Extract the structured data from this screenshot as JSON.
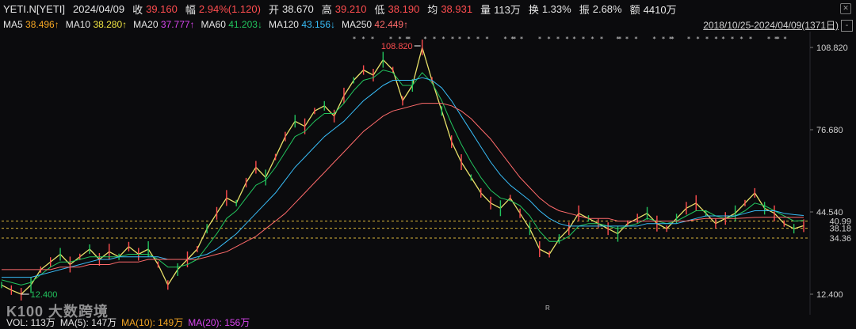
{
  "header": {
    "symbol": "YETI.N[YETI]",
    "date": "2024/04/09",
    "close_label": "收",
    "close": "39.160",
    "change_label": "幅",
    "change": "2.94%(1.120)",
    "open_label": "开",
    "open": "38.670",
    "high_label": "高",
    "high": "39.210",
    "low_label": "低",
    "low": "38.190",
    "avg_label": "均",
    "avg": "38.931",
    "volume_label": "量",
    "volume": "113万",
    "turnover_label": "换",
    "turnover": "1.33%",
    "amplitude_label": "振",
    "amplitude": "2.68%",
    "amount_label": "额",
    "amount": "4410万"
  },
  "ma": [
    {
      "label": "MA5",
      "value": "38.496↑",
      "color": "#f5a623"
    },
    {
      "label": "MA10",
      "value": "38.280↑",
      "color": "#f0e442"
    },
    {
      "label": "MA20",
      "value": "37.777↑",
      "color": "#d946ef"
    },
    {
      "label": "MA60",
      "value": "41.203↓",
      "color": "#22c55e"
    },
    {
      "label": "MA120",
      "value": "43.156↓",
      "color": "#38bdf8"
    },
    {
      "label": "MA250",
      "value": "42.449↑",
      "color": "#ff6b6b"
    }
  ],
  "range": "2018/10/25-2024/04/09(1371日)",
  "range_button": "-",
  "corner_button": "✕",
  "volume_bar": {
    "vol": "VOL: 113万",
    "ma5": "MA(5): 147万",
    "ma10": "MA(10): 149万",
    "ma20": "MA(20): 156万"
  },
  "watermark": "K100 大数跨境",
  "chart_data": {
    "type": "line",
    "y_axis_ticks": [
      "108.820",
      "76.680",
      "44.540",
      "12.400"
    ],
    "ylim": [
      12.4,
      108.82
    ],
    "ref_lines": [
      {
        "label": "40.99",
        "value": 40.99
      },
      {
        "label": "38.18",
        "value": 38.18
      },
      {
        "label": "34.36",
        "value": 34.36
      }
    ],
    "annotations": [
      {
        "label": "108.820",
        "value": 108.82,
        "kind": "high"
      },
      {
        "label": "12.400",
        "value": 12.4,
        "kind": "low"
      },
      {
        "label": "R",
        "kind": "marker"
      }
    ],
    "series": [
      {
        "name": "price",
        "color": "#e9e26a",
        "values": [
          16,
          14,
          12.4,
          16,
          22,
          25,
          28,
          24,
          27,
          30,
          26,
          29,
          27,
          31,
          28,
          30,
          24,
          16,
          22,
          26,
          30,
          38,
          44,
          50,
          48,
          56,
          62,
          58,
          66,
          74,
          80,
          78,
          84,
          86,
          82,
          90,
          96,
          100,
          98,
          104,
          100,
          88,
          94,
          108.82,
          96,
          84,
          72,
          64,
          58,
          52,
          48,
          46,
          50,
          44,
          38,
          30,
          28,
          34,
          38,
          44,
          42,
          40,
          38,
          36,
          40,
          42,
          44,
          40,
          38,
          42,
          46,
          48,
          44,
          40,
          42,
          44,
          48,
          52,
          46,
          44,
          40,
          38,
          39.16
        ]
      },
      {
        "name": "MA60",
        "color": "#22c55e",
        "values": [
          18,
          17,
          16,
          17,
          20,
          23,
          25,
          25,
          26,
          27,
          27,
          27,
          27,
          28,
          28,
          28,
          26,
          23,
          23,
          24,
          26,
          31,
          36,
          42,
          45,
          50,
          55,
          57,
          62,
          68,
          74,
          76,
          80,
          83,
          83,
          87,
          92,
          96,
          97,
          100,
          99,
          94,
          94,
          99,
          95,
          88,
          79,
          71,
          64,
          58,
          53,
          50,
          49,
          47,
          43,
          37,
          33,
          33,
          35,
          39,
          40,
          40,
          39,
          38,
          39,
          40,
          42,
          41,
          40,
          41,
          43,
          45,
          45,
          43,
          42,
          43,
          45,
          48,
          47,
          45,
          43,
          41,
          41.2
        ]
      },
      {
        "name": "MA120",
        "color": "#38bdf8",
        "values": [
          19,
          19,
          19,
          19,
          20,
          21,
          22,
          23,
          24,
          25,
          26,
          26,
          27,
          27,
          27,
          27,
          27,
          26,
          26,
          26,
          27,
          28,
          30,
          33,
          36,
          40,
          44,
          48,
          52,
          57,
          62,
          66,
          70,
          74,
          77,
          80,
          84,
          88,
          91,
          94,
          96,
          96,
          96,
          97,
          96,
          93,
          88,
          82,
          76,
          70,
          64,
          59,
          55,
          52,
          49,
          45,
          42,
          40,
          39,
          39,
          39,
          39,
          39,
          39,
          39,
          39,
          40,
          40,
          40,
          40,
          41,
          42,
          43,
          43,
          43,
          43,
          44,
          45,
          45,
          45,
          44,
          43.5,
          43.16
        ]
      },
      {
        "name": "MA250",
        "color": "#ff6b6b",
        "values": [
          22,
          22,
          22,
          22,
          22,
          22,
          23,
          23,
          23,
          24,
          24,
          24,
          25,
          25,
          25,
          26,
          26,
          26,
          26,
          26,
          26,
          27,
          28,
          29,
          31,
          33,
          35,
          38,
          41,
          44,
          48,
          52,
          56,
          60,
          64,
          68,
          72,
          76,
          79,
          82,
          84,
          85,
          86,
          87,
          87,
          87,
          86,
          84,
          81,
          77,
          73,
          68,
          63,
          58,
          54,
          50,
          47,
          45,
          44,
          43,
          42,
          42,
          42,
          41,
          41,
          41,
          41,
          41,
          41,
          41,
          41,
          41.5,
          42,
          42,
          42,
          42,
          42.2,
          42.4,
          42.5,
          42.5,
          42.5,
          42.45,
          42.45
        ]
      }
    ]
  }
}
